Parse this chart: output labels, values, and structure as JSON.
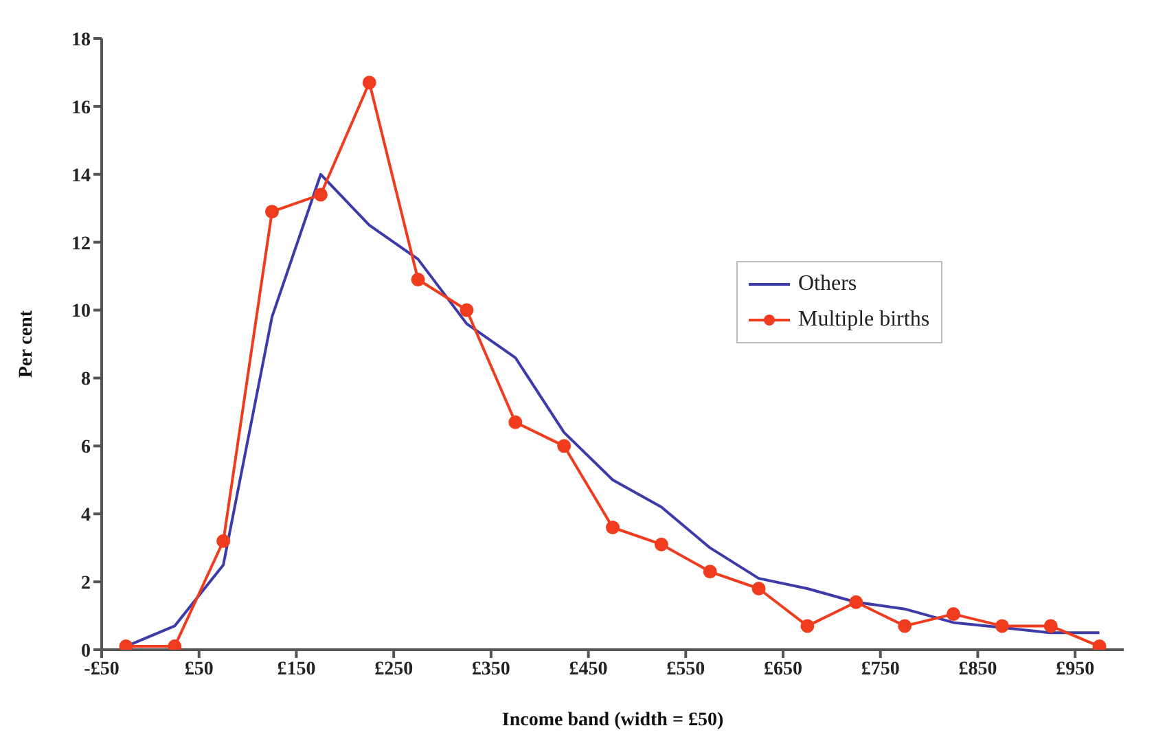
{
  "chart_data": {
    "type": "line",
    "xlabel": "Income band (width = £50)",
    "ylabel": "Per cent",
    "x": [
      -25,
      25,
      75,
      125,
      175,
      225,
      275,
      325,
      375,
      425,
      475,
      525,
      575,
      625,
      675,
      725,
      775,
      825,
      875,
      925,
      975
    ],
    "series": [
      {
        "name": "Others",
        "color": "#3d3ba8",
        "marker": "none",
        "values": [
          0.1,
          0.7,
          2.5,
          9.8,
          14.0,
          12.5,
          11.5,
          9.6,
          8.6,
          6.4,
          5.0,
          4.2,
          3.0,
          2.1,
          1.8,
          1.4,
          1.2,
          0.8,
          0.65,
          0.5,
          0.5
        ]
      },
      {
        "name": "Multiple births",
        "color": "#f03c1e",
        "marker": "circle",
        "values": [
          0.1,
          0.1,
          3.2,
          12.9,
          13.4,
          16.7,
          10.9,
          10.0,
          6.7,
          6.0,
          3.6,
          3.1,
          2.3,
          1.8,
          0.7,
          1.4,
          0.7,
          1.05,
          0.7,
          0.7,
          0.1
        ]
      }
    ],
    "xlim": [
      -50,
      1000
    ],
    "xticks": [
      {
        "value": -50,
        "label": "-£50"
      },
      {
        "value": 50,
        "label": "£50"
      },
      {
        "value": 150,
        "label": "£150"
      },
      {
        "value": 250,
        "label": "£250"
      },
      {
        "value": 350,
        "label": "£350"
      },
      {
        "value": 450,
        "label": "£450"
      },
      {
        "value": 550,
        "label": "£550"
      },
      {
        "value": 650,
        "label": "£650"
      },
      {
        "value": 750,
        "label": "£750"
      },
      {
        "value": 850,
        "label": "£850"
      },
      {
        "value": 950,
        "label": "£950"
      }
    ],
    "ylim": [
      0,
      18
    ],
    "yticks": [
      0,
      2,
      4,
      6,
      8,
      10,
      12,
      14,
      16,
      18
    ],
    "grid": false,
    "legend": "right"
  }
}
